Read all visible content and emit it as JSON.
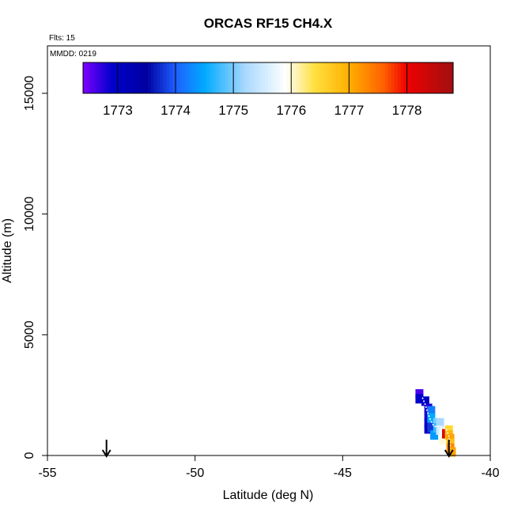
{
  "chart_data": {
    "type": "scatter",
    "title": "ORCAS RF15 CH4.X",
    "flights_label": "Flts: 15",
    "date_label": "MMDD: 0219",
    "xlabel": "Latitude (deg N)",
    "ylabel": "Altitude (m)",
    "xlim": [
      -55,
      -40
    ],
    "ylim": [
      0,
      16500
    ],
    "xticks": [
      -55,
      -50,
      -45,
      -40
    ],
    "yticks": [
      0,
      5000,
      10000,
      15000
    ],
    "colorbar": {
      "min": 1772.4,
      "max": 1778.8,
      "ticks": [
        1773,
        1774,
        1775,
        1776,
        1777,
        1778
      ]
    },
    "arrows": [
      {
        "lat": -53.0
      },
      {
        "lat": -41.4
      }
    ],
    "points": [
      {
        "lat": -42.4,
        "alt": 2550,
        "ch4": 1772.6
      },
      {
        "lat": -42.4,
        "alt": 2350,
        "ch4": 1772.9
      },
      {
        "lat": -42.2,
        "alt": 2250,
        "ch4": 1773.0
      },
      {
        "lat": -42.1,
        "alt": 1950,
        "ch4": 1772.8
      },
      {
        "lat": -42.1,
        "alt": 1650,
        "ch4": 1772.8
      },
      {
        "lat": -42.1,
        "alt": 1350,
        "ch4": 1772.9
      },
      {
        "lat": -42.1,
        "alt": 1100,
        "ch4": 1773.0
      },
      {
        "lat": -42.0,
        "alt": 1850,
        "ch4": 1774.2
      },
      {
        "lat": -42.0,
        "alt": 1550,
        "ch4": 1774.5
      },
      {
        "lat": -42.0,
        "alt": 1150,
        "ch4": 1773.8
      },
      {
        "lat": -41.9,
        "alt": 850,
        "ch4": 1774.4
      },
      {
        "lat": -41.8,
        "alt": 1350,
        "ch4": 1775.0
      },
      {
        "lat": -41.8,
        "alt": 1150,
        "ch4": 1774.7
      },
      {
        "lat": -41.7,
        "alt": 1350,
        "ch4": 1775.2
      },
      {
        "lat": -41.7,
        "alt": 1050,
        "ch4": 1775.5
      },
      {
        "lat": -41.6,
        "alt": 950,
        "ch4": 1775.8
      },
      {
        "lat": -41.6,
        "alt": 650,
        "ch4": 1776.0
      },
      {
        "lat": -41.5,
        "alt": 900,
        "ch4": 1778.2
      },
      {
        "lat": -41.4,
        "alt": 1050,
        "ch4": 1776.5
      },
      {
        "lat": -41.4,
        "alt": 850,
        "ch4": 1776.9
      },
      {
        "lat": -41.35,
        "alt": 700,
        "ch4": 1777.1
      },
      {
        "lat": -41.35,
        "alt": 500,
        "ch4": 1776.8
      },
      {
        "lat": -41.35,
        "alt": 300,
        "ch4": 1777.3
      },
      {
        "lat": -41.3,
        "alt": 150,
        "ch4": 1777.1
      }
    ],
    "track": [
      {
        "lat": -42.3,
        "alt": 2400
      },
      {
        "lat": -42.2,
        "alt": 2100
      },
      {
        "lat": -42.1,
        "alt": 1700
      },
      {
        "lat": -42.0,
        "alt": 1400
      },
      {
        "lat": -41.9,
        "alt": 1200
      },
      {
        "lat": -41.7,
        "alt": 1200
      },
      {
        "lat": -41.5,
        "alt": 1100
      },
      {
        "lat": -41.4,
        "alt": 800
      },
      {
        "lat": -41.35,
        "alt": 300
      }
    ]
  }
}
